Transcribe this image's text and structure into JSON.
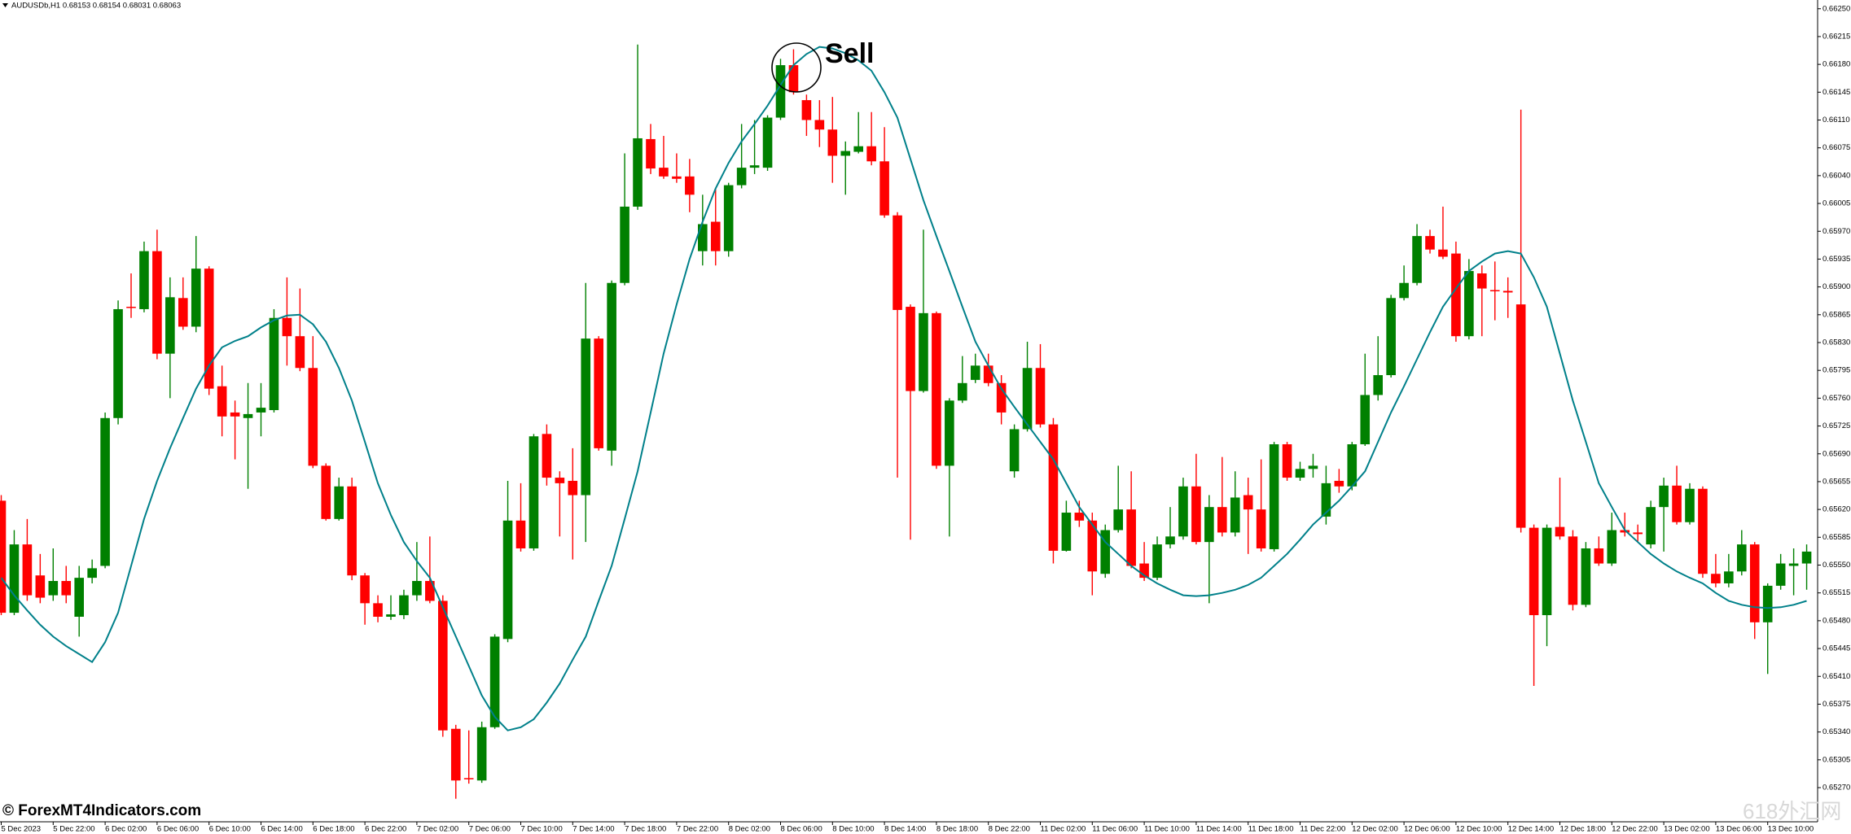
{
  "chart_data": {
    "type": "candlestick",
    "header": "AUDUSDb,H1  0.68153 0.68154 0.68031 0.68063",
    "annotation": "Sell",
    "copyright": "© ForexMT4Indicators.com",
    "watermark": "618外汇网",
    "bull_color": "#008000",
    "bear_color": "#ff0000",
    "categories": [
      "5 Dec 2023",
      null,
      null,
      null,
      "5 Dec 22:00",
      null,
      null,
      null,
      "6 Dec 02:00",
      null,
      null,
      null,
      "6 Dec 06:00",
      null,
      null,
      null,
      "6 Dec 10:00",
      null,
      null,
      null,
      "6 Dec 14:00",
      null,
      null,
      null,
      "6 Dec 18:00",
      null,
      null,
      null,
      "6 Dec 22:00",
      null,
      null,
      null,
      "7 Dec 02:00",
      null,
      null,
      null,
      "7 Dec 06:00",
      null,
      null,
      null,
      "7 Dec 10:00",
      null,
      null,
      null,
      "7 Dec 14:00",
      null,
      null,
      null,
      "7 Dec 18:00",
      null,
      null,
      null,
      "7 Dec 22:00",
      null,
      null,
      null,
      "8 Dec 02:00",
      null,
      null,
      null,
      "8 Dec 06:00",
      null,
      null,
      null,
      "8 Dec 10:00",
      null,
      null,
      null,
      "8 Dec 14:00",
      null,
      null,
      null,
      "8 Dec 18:00",
      null,
      null,
      null,
      "8 Dec 22:00",
      null,
      null,
      null,
      "11 Dec 02:00",
      null,
      null,
      null,
      "11 Dec 06:00",
      null,
      null,
      null,
      "11 Dec 10:00",
      null,
      null,
      null,
      "11 Dec 14:00",
      null,
      null,
      null,
      "11 Dec 18:00",
      null,
      null,
      null,
      "11 Dec 22:00",
      null,
      null,
      null,
      "12 Dec 02:00",
      null,
      null,
      null,
      "12 Dec 06:00",
      null,
      null,
      null,
      "12 Dec 10:00",
      null,
      null,
      null,
      "12 Dec 14:00",
      null,
      null,
      null,
      "12 Dec 18:00",
      null,
      null,
      null,
      "12 Dec 22:00",
      null,
      null,
      null,
      "13 Dec 02:00",
      null,
      null,
      null,
      "13 Dec 06:00",
      null,
      null,
      null,
      "13 Dec 10:00",
      null,
      null,
      null
    ],
    "open": [
      0.65631,
      0.6549,
      0.65576,
      0.65537,
      0.65512,
      0.6553,
      0.65485,
      0.65534,
      0.65549,
      0.65735,
      0.65875,
      0.65872,
      0.65945,
      0.65816,
      0.65886,
      0.6585,
      0.65923,
      0.65775,
      0.65742,
      0.65735,
      0.65742,
      0.65745,
      0.65861,
      0.65838,
      0.65798,
      0.65675,
      0.65608,
      0.65649,
      0.65537,
      0.65502,
      0.65485,
      0.65487,
      0.65512,
      0.6553,
      0.65505,
      0.65344,
      0.65282,
      0.65279,
      0.65346,
      0.65457,
      0.65606,
      0.65571,
      0.65715,
      0.6566,
      0.65656,
      0.65638,
      0.65835,
      0.65694,
      0.65905,
      0.66001,
      0.66086,
      0.6605,
      0.66039,
      0.66039,
      0.65945,
      0.65982,
      0.65945,
      0.66028,
      0.6605,
      0.6605,
      0.66113,
      0.66179,
      0.66135,
      0.6611,
      0.66098,
      0.66065,
      0.6607,
      0.66077,
      0.66058,
      0.6599,
      0.65875,
      0.65769,
      0.65867,
      0.65675,
      0.65757,
      0.65783,
      0.65801,
      0.65779,
      0.65668,
      0.65721,
      0.65798,
      0.65727,
      0.65568,
      0.65616,
      0.65606,
      0.65539,
      0.65594,
      0.6562,
      0.65552,
      0.65534,
      0.65576,
      0.65586,
      0.65649,
      0.65579,
      0.65623,
      0.65591,
      0.65638,
      0.6562,
      0.6557,
      0.65702,
      0.6566,
      0.65671,
      0.65611,
      0.65656,
      0.65649,
      0.65702,
      0.65764,
      0.65789,
      0.65886,
      0.65905,
      0.65964,
      0.65947,
      0.65942,
      0.65838,
      0.65917,
      0.65896,
      0.65895,
      0.65878,
      0.65597,
      0.65487,
      0.65598,
      0.65586,
      0.655,
      0.65571,
      0.65552,
      0.65594,
      0.65591,
      0.65576,
      0.65623,
      0.6565,
      0.65604,
      0.65646,
      0.65539,
      0.65527,
      0.65542,
      0.65576,
      0.65478,
      0.65524,
      0.65549,
      0.65552
    ],
    "high": [
      0.65638,
      0.65594,
      0.65608,
      0.65564,
      0.65571,
      0.65549,
      0.65549,
      0.65557,
      0.65742,
      0.65883,
      0.65917,
      0.65957,
      0.65972,
      0.65912,
      0.65912,
      0.65964,
      0.65926,
      0.65801,
      0.65757,
      0.65779,
      0.65779,
      0.65872,
      0.65912,
      0.65898,
      0.65838,
      0.65678,
      0.6566,
      0.6566,
      0.6554,
      0.65512,
      0.65512,
      0.65519,
      0.65579,
      0.65586,
      0.65512,
      0.65349,
      0.65342,
      0.65353,
      0.65463,
      0.65656,
      0.65653,
      0.65715,
      0.65727,
      0.65668,
      0.65697,
      0.65905,
      0.65838,
      0.65908,
      0.66068,
      0.66205,
      0.66105,
      0.6609,
      0.66068,
      0.66061,
      0.66016,
      0.66024,
      0.66031,
      0.66105,
      0.6611,
      0.66116,
      0.66187,
      0.66199,
      0.66142,
      0.66135,
      0.66139,
      0.66083,
      0.6612,
      0.6612,
      0.66101,
      0.65994,
      0.65878,
      0.65972,
      0.65869,
      0.6576,
      0.65813,
      0.65816,
      0.65816,
      0.65789,
      0.65727,
      0.65831,
      0.65828,
      0.65735,
      0.65631,
      0.65631,
      0.65616,
      0.65601,
      0.65675,
      0.65668,
      0.65579,
      0.65586,
      0.65623,
      0.6566,
      0.6569,
      0.65638,
      0.65686,
      0.65668,
      0.6566,
      0.65683,
      0.65705,
      0.65705,
      0.6568,
      0.6569,
      0.65675,
      0.65671,
      0.65705,
      0.65816,
      0.65838,
      0.6589,
      0.65927,
      0.65979,
      0.65972,
      0.66001,
      0.65957,
      0.65935,
      0.65927,
      0.65932,
      0.65912,
      0.66123,
      0.65601,
      0.65601,
      0.6566,
      0.65594,
      0.65579,
      0.65586,
      0.65616,
      0.65616,
      0.65601,
      0.65631,
      0.6566,
      0.65675,
      0.65653,
      0.65649,
      0.65564,
      0.65564,
      0.65594,
      0.65579,
      0.65527,
      0.65564,
      0.65571,
      0.65576
    ],
    "low": [
      0.65487,
      0.65487,
      0.65505,
      0.65502,
      0.65505,
      0.65502,
      0.6546,
      0.65527,
      0.65546,
      0.65727,
      0.65861,
      0.65868,
      0.65809,
      0.6576,
      0.65846,
      0.65843,
      0.65764,
      0.65712,
      0.65683,
      0.65646,
      0.65712,
      0.65742,
      0.65801,
      0.65794,
      0.65672,
      0.65606,
      0.65606,
      0.65531,
      0.65475,
      0.65478,
      0.65481,
      0.65482,
      0.65505,
      0.65502,
      0.65334,
      0.65256,
      0.65275,
      0.65276,
      0.65344,
      0.65453,
      0.65567,
      0.65568,
      0.6565,
      0.65586,
      0.65557,
      0.65579,
      0.65694,
      0.65675,
      0.65902,
      0.65997,
      0.66042,
      0.66036,
      0.66031,
      0.65994,
      0.65927,
      0.65927,
      0.65938,
      0.66024,
      0.66042,
      0.66046,
      0.6611,
      0.66142,
      0.6609,
      0.66076,
      0.66031,
      0.66016,
      0.66068,
      0.66053,
      0.65987,
      0.6566,
      0.65582,
      0.65767,
      0.65671,
      0.65586,
      0.65754,
      0.65779,
      0.65775,
      0.65727,
      0.6566,
      0.65718,
      0.65723,
      0.65552,
      0.65567,
      0.65598,
      0.65512,
      0.65534,
      0.65591,
      0.65546,
      0.6553,
      0.65531,
      0.65571,
      0.65582,
      0.65576,
      0.65502,
      0.65586,
      0.65586,
      0.65564,
      0.65567,
      0.65567,
      0.65656,
      0.65656,
      0.6566,
      0.65601,
      0.65641,
      0.65644,
      0.657,
      0.65757,
      0.65786,
      0.65883,
      0.65902,
      0.65942,
      0.65935,
      0.65831,
      0.65834,
      0.65838,
      0.65858,
      0.65861,
      0.65591,
      0.65398,
      0.65448,
      0.65582,
      0.65493,
      0.65497,
      0.65549,
      0.65549,
      0.65586,
      0.65579,
      0.65571,
      0.65567,
      0.65601,
      0.65601,
      0.65534,
      0.65522,
      0.65522,
      0.65537,
      0.65457,
      0.65413,
      0.65519,
      0.65512,
      0.65519
    ],
    "close": [
      0.6549,
      0.65576,
      0.65512,
      0.65509,
      0.6553,
      0.65512,
      0.65534,
      0.65546,
      0.65735,
      0.65872,
      0.65874,
      0.65945,
      0.65816,
      0.65887,
      0.6585,
      0.65923,
      0.65772,
      0.65737,
      0.65737,
      0.6574,
      0.65748,
      0.65861,
      0.65838,
      0.65798,
      0.65675,
      0.65608,
      0.65649,
      0.65537,
      0.65502,
      0.65485,
      0.65488,
      0.65512,
      0.6553,
      0.65505,
      0.65342,
      0.65279,
      0.65281,
      0.65346,
      0.6546,
      0.65606,
      0.65571,
      0.65712,
      0.6566,
      0.65653,
      0.65638,
      0.65835,
      0.65697,
      0.65905,
      0.66001,
      0.66087,
      0.66049,
      0.66039,
      0.66036,
      0.66016,
      0.65979,
      0.65945,
      0.66028,
      0.6605,
      0.66053,
      0.66113,
      0.66179,
      0.66145,
      0.6611,
      0.66098,
      0.66065,
      0.66071,
      0.66077,
      0.66058,
      0.6599,
      0.65871,
      0.65769,
      0.65867,
      0.65675,
      0.65757,
      0.65779,
      0.65801,
      0.65779,
      0.65742,
      0.65721,
      0.65798,
      0.65727,
      0.65568,
      0.65616,
      0.65606,
      0.65542,
      0.65594,
      0.6562,
      0.65549,
      0.65534,
      0.65576,
      0.65586,
      0.65649,
      0.65579,
      0.65623,
      0.65591,
      0.65635,
      0.6562,
      0.65571,
      0.65702,
      0.6566,
      0.65671,
      0.65675,
      0.65653,
      0.65649,
      0.65702,
      0.65764,
      0.65789,
      0.65886,
      0.65905,
      0.65964,
      0.65947,
      0.65938,
      0.65838,
      0.6592,
      0.65898,
      0.65895,
      0.65893,
      0.65597,
      0.65487,
      0.65597,
      0.65586,
      0.655,
      0.65571,
      0.65552,
      0.65594,
      0.65591,
      0.65589,
      0.65623,
      0.6565,
      0.65604,
      0.65646,
      0.65539,
      0.65527,
      0.65542,
      0.65576,
      0.65478,
      0.65524,
      0.65552,
      0.65552,
      0.65567
    ],
    "ma": {
      "color": "#00808a",
      "values": [
        0.65534,
        0.65512,
        0.65493,
        0.65475,
        0.6546,
        0.65448,
        0.65438,
        0.65428,
        0.65453,
        0.6549,
        0.65549,
        0.65608,
        0.65656,
        0.65697,
        0.65735,
        0.65772,
        0.65801,
        0.65824,
        0.65832,
        0.65838,
        0.65849,
        0.65858,
        0.65864,
        0.65865,
        0.65853,
        0.65831,
        0.65798,
        0.65757,
        0.65705,
        0.65653,
        0.65613,
        0.65579,
        0.65555,
        0.65534,
        0.65497,
        0.6546,
        0.65423,
        0.65386,
        0.65359,
        0.65342,
        0.65346,
        0.65356,
        0.65377,
        0.65401,
        0.65431,
        0.6546,
        0.65505,
        0.65549,
        0.65608,
        0.65668,
        0.65742,
        0.65816,
        0.65878,
        0.65935,
        0.65982,
        0.66024,
        0.66056,
        0.66083,
        0.66105,
        0.66128,
        0.66154,
        0.66179,
        0.66193,
        0.66202,
        0.662,
        0.66194,
        0.66185,
        0.66172,
        0.66145,
        0.66113,
        0.66061,
        0.66009,
        0.65964,
        0.6592,
        0.65875,
        0.65831,
        0.65801,
        0.65772,
        0.65749,
        0.65727,
        0.65705,
        0.65683,
        0.65653,
        0.65623,
        0.65601,
        0.65579,
        0.65564,
        0.65549,
        0.65537,
        0.65527,
        0.65519,
        0.65512,
        0.65511,
        0.65512,
        0.65515,
        0.65519,
        0.65525,
        0.65534,
        0.65549,
        0.65564,
        0.65582,
        0.65601,
        0.65616,
        0.65631,
        0.65649,
        0.65668,
        0.65705,
        0.65742,
        0.65775,
        0.65809,
        0.65843,
        0.65875,
        0.65898,
        0.6592,
        0.65932,
        0.65942,
        0.65945,
        0.65942,
        0.65912,
        0.65875,
        0.65816,
        0.65757,
        0.65705,
        0.65653,
        0.65623,
        0.65594,
        0.65579,
        0.65564,
        0.65552,
        0.65542,
        0.65534,
        0.65527,
        0.65515,
        0.65505,
        0.655,
        0.65497,
        0.65496,
        0.65497,
        0.655,
        0.65505
      ]
    },
    "ylim": [
      0.65227,
      0.66261
    ],
    "yticks": [
      {
        "value": 0.6527,
        "label": "0.65270"
      },
      0.65305,
      {
        "value": 0.6534,
        "label": "0.65340"
      },
      0.65375,
      {
        "value": 0.6541,
        "label": "0.65410"
      },
      0.65445,
      {
        "value": 0.6548,
        "label": "0.65480"
      },
      0.65515,
      {
        "value": 0.6555,
        "label": "0.65550"
      },
      0.65585,
      {
        "value": 0.6562,
        "label": "0.65620"
      },
      0.65655,
      {
        "value": 0.6569,
        "label": "0.65690"
      },
      0.65725,
      {
        "value": 0.6576,
        "label": "0.65760"
      },
      0.65795,
      {
        "value": 0.6583,
        "label": "0.65830"
      },
      0.65865,
      {
        "value": 0.659,
        "label": "0.65900"
      },
      0.65935,
      {
        "value": 0.6597,
        "label": "0.65970"
      },
      0.66005,
      {
        "value": 0.6604,
        "label": "0.66040"
      },
      0.66075,
      {
        "value": 0.6611,
        "label": "0.66110"
      },
      0.66145,
      {
        "value": 0.6618,
        "label": "0.66180"
      },
      0.66215,
      {
        "value": 0.6625,
        "label": "0.66250"
      }
    ],
    "grid": false
  }
}
